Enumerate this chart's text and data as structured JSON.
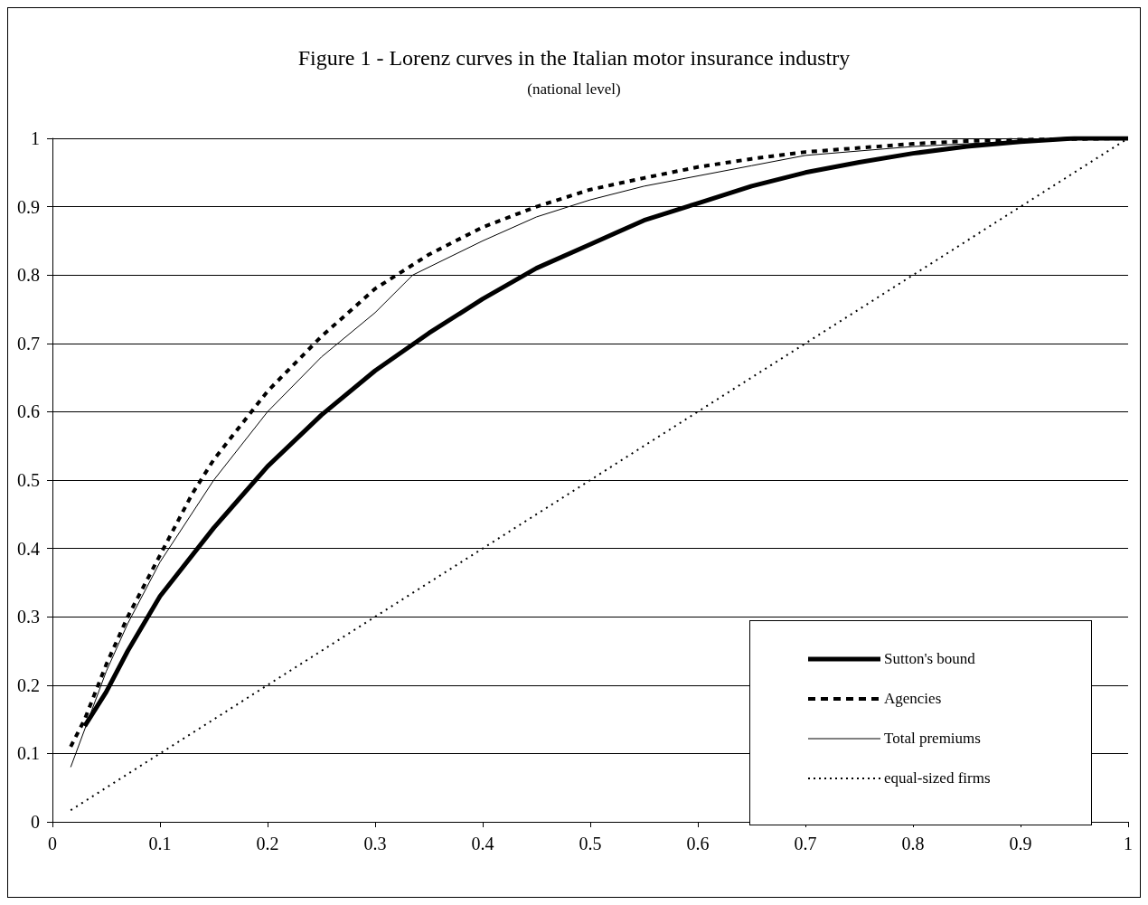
{
  "chart_data": {
    "type": "line",
    "title": "Figure 1 - Lorenz curves in the Italian motor insurance industry",
    "subtitle": "(national level)",
    "xlim": [
      0,
      1
    ],
    "xticks": [
      0,
      0.1,
      0.2,
      0.3,
      0.4,
      0.5,
      0.6,
      0.7,
      0.8,
      0.9,
      1
    ],
    "ylim": [
      0,
      1
    ],
    "yticks": [
      0,
      0.1,
      0.2,
      0.3,
      0.4,
      0.5,
      0.6,
      0.7,
      0.8,
      0.9,
      1
    ],
    "grid": "y",
    "legend": "bottom right",
    "marker": "none",
    "series": [
      {
        "name": "Sutton's bound",
        "color": "#000000",
        "line_style": "solid",
        "x": [
          0.03,
          0.05,
          0.07,
          0.1,
          0.15,
          0.2,
          0.25,
          0.3,
          0.35,
          0.4,
          0.45,
          0.5,
          0.55,
          0.6,
          0.65,
          0.7,
          0.75,
          0.8,
          0.85,
          0.9,
          0.95,
          1
        ],
        "values": [
          0.14,
          0.19,
          0.25,
          0.33,
          0.43,
          0.52,
          0.595,
          0.66,
          0.715,
          0.765,
          0.81,
          0.845,
          0.88,
          0.905,
          0.93,
          0.95,
          0.965,
          0.978,
          0.988,
          0.995,
          1,
          1
        ]
      },
      {
        "name": "Agencies",
        "color": "#000000",
        "line_style": "dashed",
        "x": [
          0.017,
          0.03,
          0.05,
          0.07,
          0.1,
          0.13,
          0.15,
          0.2,
          0.25,
          0.3,
          0.35,
          0.4,
          0.45,
          0.5,
          0.55,
          0.6,
          0.65,
          0.7,
          0.75,
          0.8,
          0.85,
          0.9,
          1
        ],
        "values": [
          0.11,
          0.15,
          0.23,
          0.3,
          0.39,
          0.48,
          0.53,
          0.63,
          0.71,
          0.78,
          0.83,
          0.87,
          0.9,
          0.925,
          0.942,
          0.958,
          0.97,
          0.98,
          0.986,
          0.992,
          0.996,
          0.998,
          1
        ]
      },
      {
        "name": "Total premiums",
        "color": "#000000",
        "line_style": "solid",
        "x": [
          0.017,
          0.05,
          0.07,
          0.1,
          0.15,
          0.2,
          0.25,
          0.3,
          0.335,
          0.4,
          0.45,
          0.5,
          0.55,
          0.6,
          0.65,
          0.7,
          0.8,
          0.9,
          1
        ],
        "values": [
          0.08,
          0.22,
          0.29,
          0.38,
          0.5,
          0.6,
          0.68,
          0.745,
          0.8,
          0.85,
          0.885,
          0.91,
          0.93,
          0.945,
          0.96,
          0.975,
          0.988,
          0.996,
          1
        ]
      },
      {
        "name": "equal-sized firms",
        "color": "#000000",
        "line_style": "dotted",
        "x": [
          0.017,
          1
        ],
        "values": [
          0.017,
          1
        ]
      }
    ]
  }
}
